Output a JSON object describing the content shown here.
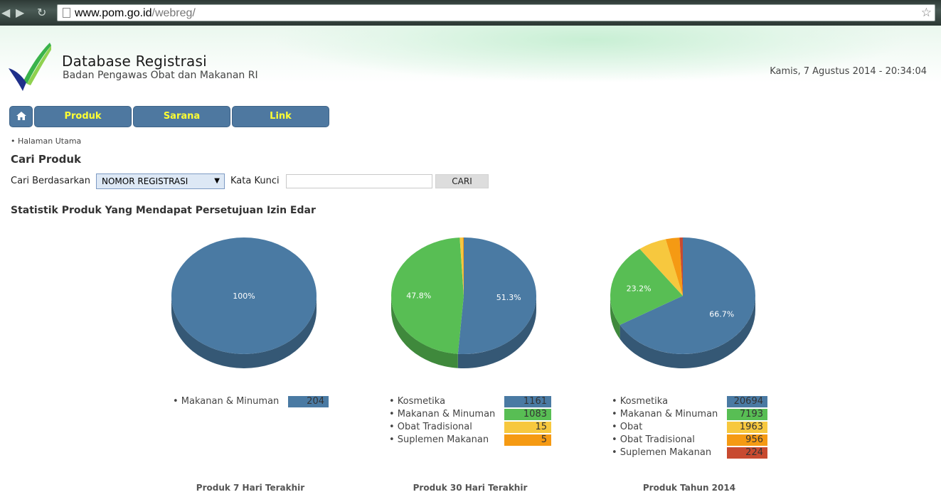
{
  "browser": {
    "url_host": "www.pom.go.id",
    "url_path": "/webreg/"
  },
  "header": {
    "title": "Database Registrasi",
    "subtitle": "Badan Pengawas Obat dan Makanan RI",
    "datetime": "Kamis, 7 Agustus 2014 - 20:34:04"
  },
  "nav": {
    "items": [
      {
        "label": "Produk"
      },
      {
        "label": "Sarana"
      },
      {
        "label": "Link"
      }
    ]
  },
  "breadcrumb": "• Halaman Utama",
  "search": {
    "section_title": "Cari Produk",
    "by_label": "Cari Berdasarkan",
    "by_selected": "NOMOR REGISTRASI",
    "keyword_label": "Kata Kunci",
    "keyword_value": "",
    "button_label": "CARI"
  },
  "stats": {
    "title": "Statistik Produk Yang Mendapat Persetujuan Izin Edar"
  },
  "colors": {
    "blue": "#4a7aa3",
    "green": "#58be54",
    "yellow": "#f7c83e",
    "orange": "#f59a13",
    "red": "#c84a30",
    "nav": "#4e78a0",
    "nav_text": "#ffff33"
  },
  "chart_data": [
    {
      "type": "pie",
      "title": "Produk 7 Hari Terakhir",
      "slices": [
        {
          "name": "Makanan & Minuman",
          "value": 204,
          "color": "#4a7aa3",
          "label": "100%"
        }
      ]
    },
    {
      "type": "pie",
      "title": "Produk 30 Hari Terakhir",
      "slices": [
        {
          "name": "Kosmetika",
          "value": 1161,
          "color": "#4a7aa3",
          "label": "51.3%"
        },
        {
          "name": "Makanan & Minuman",
          "value": 1083,
          "color": "#58be54",
          "label": "47.8%"
        },
        {
          "name": "Obat Tradisional",
          "value": 15,
          "color": "#f7c83e",
          "label": ""
        },
        {
          "name": "Suplemen Makanan",
          "value": 5,
          "color": "#f59a13",
          "label": ""
        }
      ]
    },
    {
      "type": "pie",
      "title": "Produk Tahun 2014",
      "slices": [
        {
          "name": "Kosmetika",
          "value": 20694,
          "color": "#4a7aa3",
          "label": "66.7%"
        },
        {
          "name": "Makanan & Minuman",
          "value": 7193,
          "color": "#58be54",
          "label": "23.2%"
        },
        {
          "name": "Obat",
          "value": 1963,
          "color": "#f7c83e",
          "label": ""
        },
        {
          "name": "Obat Tradisional",
          "value": 956,
          "color": "#f59a13",
          "label": ""
        },
        {
          "name": "Suplemen Makanan",
          "value": 224,
          "color": "#c84a30",
          "label": ""
        }
      ]
    }
  ]
}
